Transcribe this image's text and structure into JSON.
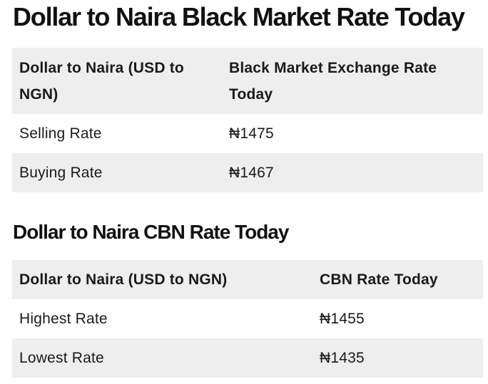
{
  "black_market": {
    "title": "Dollar to Naira Black Market Rate Today",
    "headers": [
      "Dollar to Naira (USD to NGN)",
      "Black Market Exchange Rate Today"
    ],
    "rows": [
      {
        "label": "Selling Rate",
        "value": "₦1475"
      },
      {
        "label": "Buying Rate",
        "value": "₦1467"
      }
    ]
  },
  "cbn": {
    "title": "Dollar to Naira CBN Rate Today",
    "headers": [
      "Dollar to Naira (USD to NGN)",
      "CBN Rate Today"
    ],
    "rows": [
      {
        "label": "Highest Rate",
        "value": "₦1455"
      },
      {
        "label": "Lowest Rate",
        "value": "₦1435"
      }
    ]
  },
  "colors": {
    "header_bg": "#eeeeee",
    "stripe_bg": "#eeeeee",
    "text": "#111111"
  }
}
